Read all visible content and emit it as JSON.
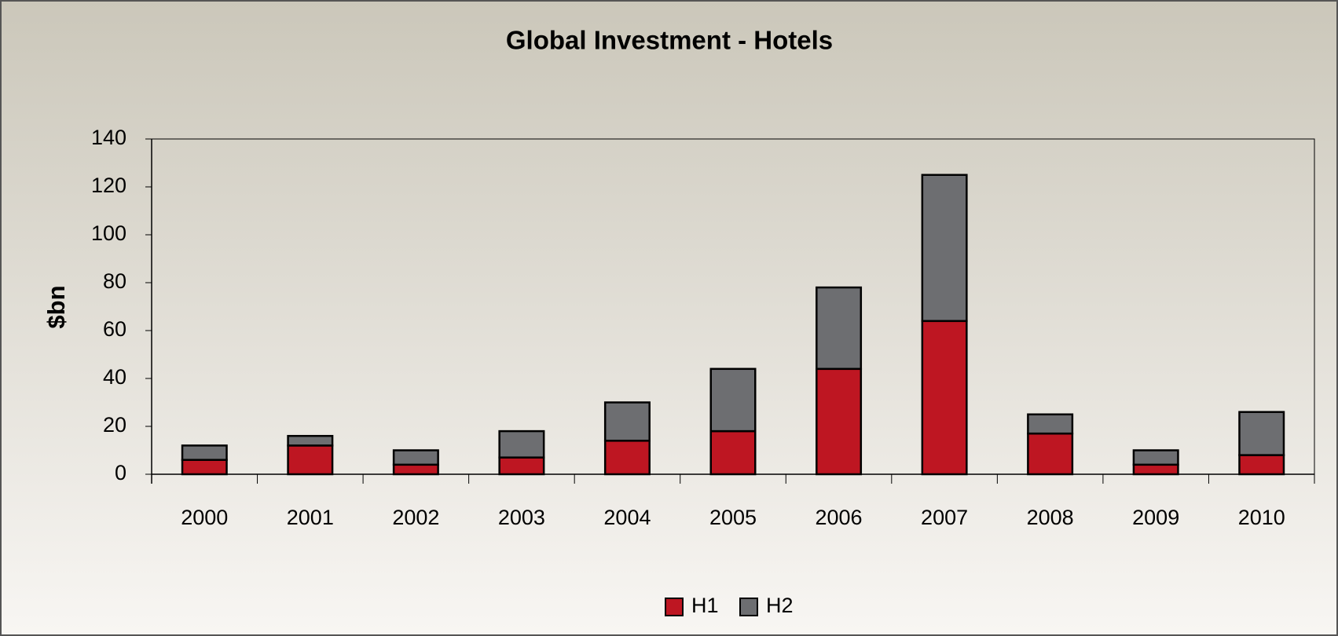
{
  "chart_data": {
    "type": "stacked_bar",
    "title": "Global Investment - Hotels",
    "y_label": "$bn",
    "categories": [
      "2000",
      "2001",
      "2002",
      "2003",
      "2004",
      "2005",
      "2006",
      "2007",
      "2008",
      "2009",
      "2010"
    ],
    "series": [
      {
        "name": "H1",
        "color": "#be1622",
        "values": [
          6,
          12,
          4,
          7,
          14,
          18,
          44,
          64,
          17,
          4,
          8
        ]
      },
      {
        "name": "H2",
        "color": "#6d6e71",
        "values": [
          6,
          4,
          6,
          11,
          16,
          26,
          34,
          61,
          8,
          6,
          18
        ]
      }
    ],
    "ylim": [
      0,
      140
    ],
    "yticks": [
      0,
      20,
      40,
      60,
      80,
      100,
      120,
      140
    ],
    "legend": "bottom"
  }
}
